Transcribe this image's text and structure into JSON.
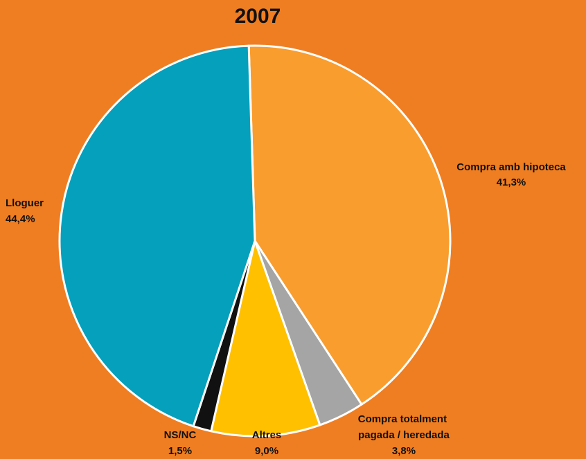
{
  "chart_data": {
    "type": "pie",
    "title": "2007",
    "slices": [
      {
        "name": "Compra amb hipoteca",
        "value": 41.3,
        "label": "41,3%",
        "color": "#F99D2E"
      },
      {
        "name": "Compra totalment pagada / heredada",
        "value": 3.8,
        "label": "3,8%",
        "color": "#A5A5A5"
      },
      {
        "name": "Altres",
        "value": 9.0,
        "label": "9,0%",
        "color": "#FFC000"
      },
      {
        "name": "NS/NC",
        "value": 1.5,
        "label": "1,5%",
        "color": "#111111"
      },
      {
        "name": "Lloguer",
        "value": 44.4,
        "label": "44,4%",
        "color": "#04A0BC"
      }
    ],
    "colors": {
      "background": "#EF7E22",
      "slice_border": "#FFFFFF"
    }
  }
}
